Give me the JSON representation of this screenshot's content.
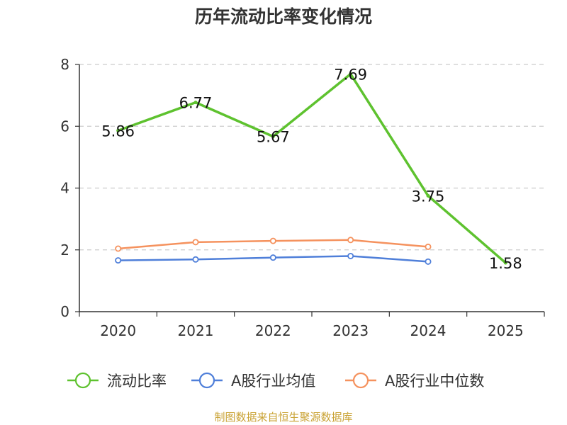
{
  "chart_data": {
    "type": "line",
    "title": "历年流动比率变化情况",
    "categories": [
      "2020",
      "2021",
      "2022",
      "2023",
      "2024",
      "2025"
    ],
    "ylim": [
      0,
      8
    ],
    "yticks": [
      0,
      2,
      4,
      6,
      8
    ],
    "grid": true,
    "legend_position": "bottom",
    "series": [
      {
        "name": "流动比率",
        "color": "#5ec22f",
        "values": [
          5.86,
          6.77,
          5.67,
          7.69,
          3.75,
          1.58
        ],
        "labels": [
          "5.86",
          "6.77",
          "5.67",
          "7.69",
          "3.75",
          "1.58"
        ]
      },
      {
        "name": "A股行业均值",
        "color": "#4f7fd9",
        "values": [
          1.66,
          1.69,
          1.75,
          1.8,
          1.62,
          null
        ]
      },
      {
        "name": "A股行业中位数",
        "color": "#f5925e",
        "values": [
          2.04,
          2.25,
          2.29,
          2.32,
          2.1,
          null
        ]
      }
    ],
    "source": "制图数据来自恒生聚源数据库"
  }
}
